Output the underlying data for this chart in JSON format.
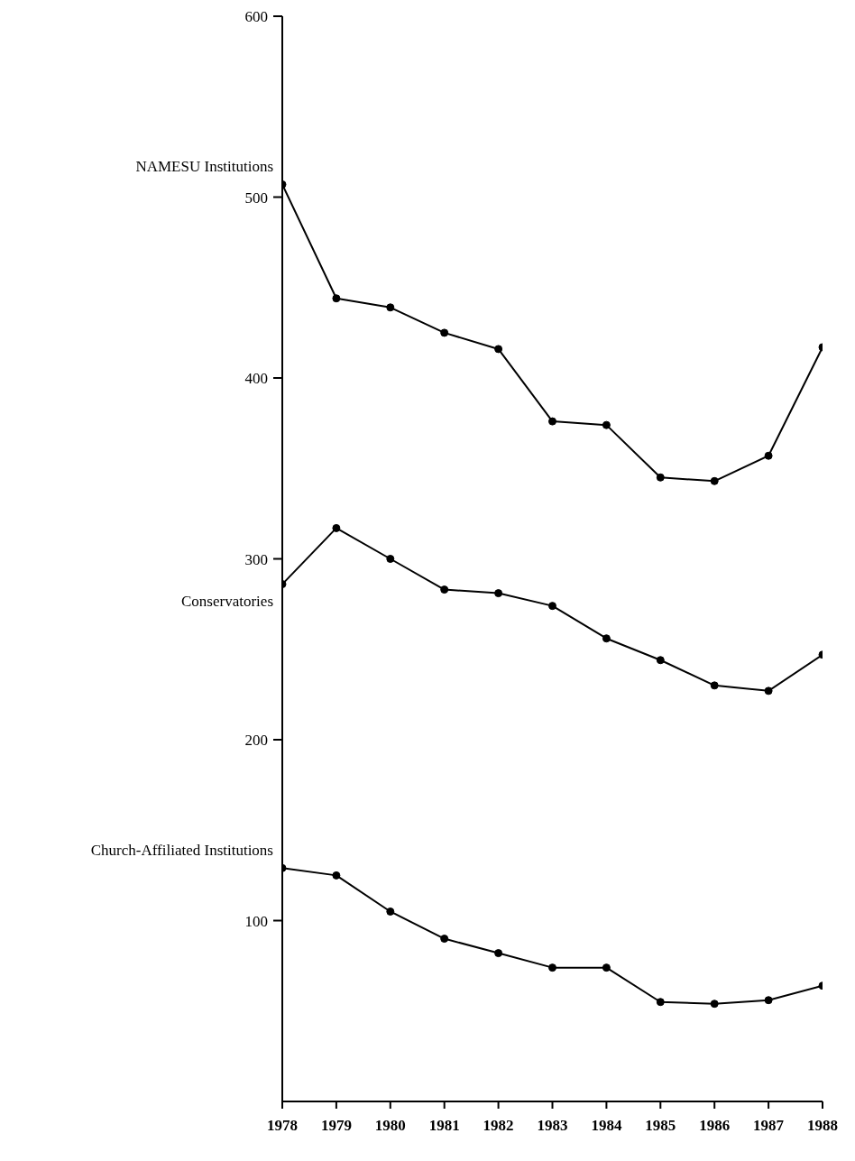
{
  "chart_data": {
    "type": "line",
    "x": [
      1978,
      1979,
      1980,
      1981,
      1982,
      1983,
      1984,
      1985,
      1986,
      1987,
      1988
    ],
    "xlim": [
      1978,
      1988
    ],
    "xticks": [
      1978,
      1979,
      1980,
      1981,
      1982,
      1983,
      1984,
      1985,
      1986,
      1987,
      1988
    ],
    "ylim": [
      0,
      600
    ],
    "yticks": [
      100,
      200,
      300,
      400,
      500,
      600
    ],
    "marker": "circle",
    "line_style": "solid",
    "grid": false,
    "series": [
      {
        "name": "NAMESU Institutions",
        "color": "#000000",
        "values": [
          507,
          444,
          439,
          425,
          416,
          376,
          374,
          345,
          343,
          357,
          417
        ]
      },
      {
        "name": "Conservatories",
        "color": "#000000",
        "values": [
          286,
          317,
          300,
          283,
          281,
          274,
          256,
          244,
          230,
          227,
          247
        ]
      },
      {
        "name": "Church-Affiliated Institutions",
        "color": "#000000",
        "values": [
          129,
          125,
          105,
          90,
          82,
          74,
          74,
          55,
          54,
          56,
          64
        ]
      }
    ]
  }
}
